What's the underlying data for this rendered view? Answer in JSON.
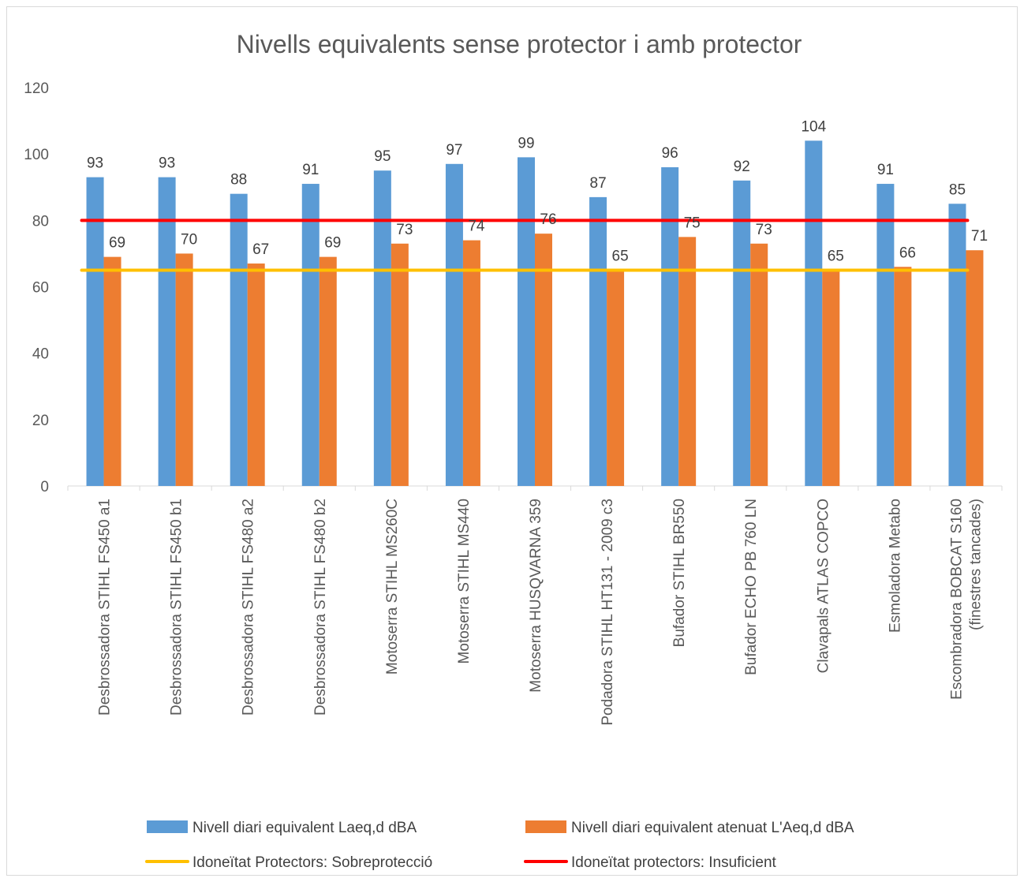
{
  "chart_data": {
    "type": "bar",
    "title": "Nivells equivalents sense protector i amb protector",
    "xlabel": "",
    "ylabel": "",
    "ylim": [
      0,
      120
    ],
    "yticks": [
      "0",
      "20",
      "40",
      "60",
      "80",
      "100",
      "120"
    ],
    "grid": false,
    "legend_position": "bottom",
    "categories": [
      "Desbrossadora STIHL FS450 a1",
      "Desbrossadora STIHL FS450 b1",
      "Desbrossadora STIHL FS480 a2",
      "Desbrossadora STIHL FS480 b2",
      "Motoserra STIHL MS260C",
      "Motoserra STIHL MS440",
      "Motoserra HUSQVARNA 359",
      "Podadora STIHL HT131 - 2009 c3",
      "Bufador STIHL BR550",
      "Bufador ECHO PB 760 LN",
      "Clavapals ATLAS COPCO",
      "Esmoladora Metabo",
      "Escombradora BOBCAT S160 (finestres tancades)"
    ],
    "series": [
      {
        "name": "Nivell diari equivalent Laeq,d dBA",
        "type": "bar",
        "color": "#5b9bd5",
        "values": [
          93,
          93,
          88,
          91,
          95,
          97,
          99,
          87,
          96,
          92,
          104,
          91,
          85
        ]
      },
      {
        "name": "Nivell diari equivalent atenuat L'Aeq,d dBA",
        "type": "bar",
        "color": "#ed7d31",
        "values": [
          69,
          70,
          67,
          69,
          73,
          74,
          76,
          65,
          75,
          73,
          65,
          66,
          71
        ]
      },
      {
        "name": "Idoneïtat Protectors: Sobreprotecció",
        "type": "line",
        "color": "#ffc000",
        "values": [
          65,
          65,
          65,
          65,
          65,
          65,
          65,
          65,
          65,
          65,
          65,
          65,
          65
        ]
      },
      {
        "name": "Idoneïtat protectors: Insuficient",
        "type": "line",
        "color": "#ff0000",
        "values": [
          80,
          80,
          80,
          80,
          80,
          80,
          80,
          80,
          80,
          80,
          80,
          80,
          80
        ]
      }
    ]
  }
}
